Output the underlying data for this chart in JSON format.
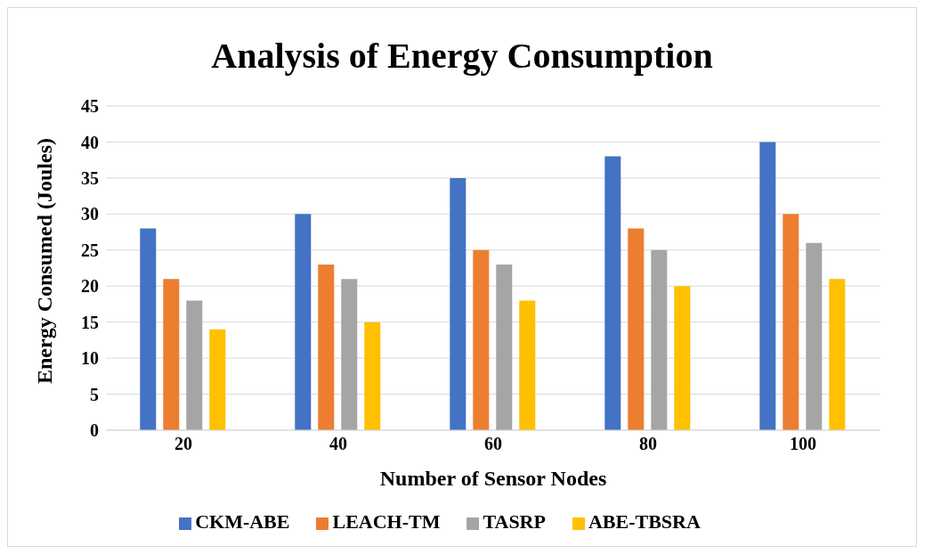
{
  "chart_data": {
    "type": "bar",
    "title": "Analysis of Energy Consumption",
    "xlabel": "Number of Sensor Nodes",
    "ylabel": "Energy Consumed (Joules)",
    "categories": [
      "20",
      "40",
      "60",
      "80",
      "100"
    ],
    "series": [
      {
        "name": "CKM-ABE",
        "color": "#4472c4",
        "values": [
          28,
          30,
          35,
          38,
          40
        ]
      },
      {
        "name": "LEACH-TM",
        "color": "#ed7d31",
        "values": [
          21,
          23,
          25,
          28,
          30
        ]
      },
      {
        "name": "TASRP",
        "color": "#a5a5a5",
        "values": [
          18,
          21,
          23,
          25,
          26
        ]
      },
      {
        "name": "ABE-TBSRA",
        "color": "#ffc000",
        "values": [
          14,
          15,
          18,
          20,
          21
        ]
      }
    ],
    "ylim": [
      0,
      45
    ],
    "yticks": [
      0,
      5,
      10,
      15,
      20,
      25,
      30,
      35,
      40,
      45
    ],
    "grid": "y",
    "legend": "bottom"
  }
}
